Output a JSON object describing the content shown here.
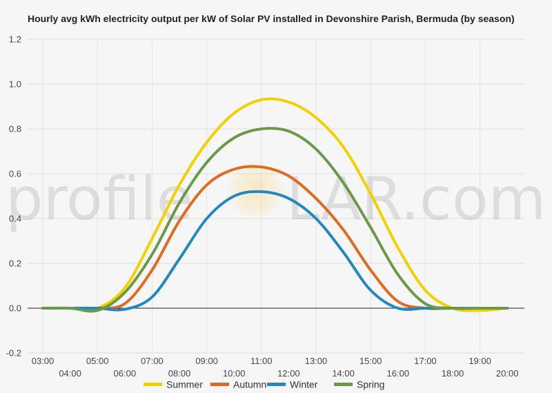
{
  "chart_data": {
    "type": "line",
    "title": "Hourly avg kWh electricity output per kW of Solar PV installed in Devonshire Parish, Bermuda (by season)",
    "xlabel": "",
    "ylabel": "",
    "ylim": [
      -0.2,
      1.2
    ],
    "yticks": [
      "-0.2",
      "0.0",
      "0.2",
      "0.4",
      "0.6",
      "0.8",
      "1.0",
      "1.2"
    ],
    "ytick_values": [
      -0.2,
      0.0,
      0.2,
      0.4,
      0.6,
      0.8,
      1.0,
      1.2
    ],
    "categories": [
      "03:00",
      "04:00",
      "05:00",
      "06:00",
      "07:00",
      "08:00",
      "09:00",
      "10:00",
      "11:00",
      "12:00",
      "13:00",
      "14:00",
      "15:00",
      "16:00",
      "17:00",
      "18:00",
      "19:00",
      "20:00"
    ],
    "grid": true,
    "legend_position": "bottom",
    "series": [
      {
        "name": "Summer",
        "color": "#f5d000",
        "values": [
          0.0,
          0.0,
          0.0,
          0.09,
          0.31,
          0.55,
          0.74,
          0.87,
          0.93,
          0.92,
          0.85,
          0.72,
          0.51,
          0.27,
          0.08,
          0.0,
          -0.01,
          0.0
        ]
      },
      {
        "name": "Autumn",
        "color": "#e06a1e",
        "values": [
          0.0,
          0.0,
          0.0,
          0.02,
          0.17,
          0.39,
          0.55,
          0.62,
          0.63,
          0.59,
          0.49,
          0.35,
          0.17,
          0.03,
          0.0,
          0.0,
          0.0,
          0.0
        ]
      },
      {
        "name": "Winter",
        "color": "#2188c0",
        "values": [
          0.0,
          0.0,
          0.0,
          -0.005,
          0.05,
          0.22,
          0.4,
          0.5,
          0.52,
          0.49,
          0.4,
          0.25,
          0.08,
          0.0,
          0.0,
          0.0,
          0.0,
          0.0
        ]
      },
      {
        "name": "Spring",
        "color": "#6b9a47",
        "values": [
          0.0,
          0.0,
          -0.01,
          0.07,
          0.24,
          0.47,
          0.65,
          0.76,
          0.8,
          0.79,
          0.71,
          0.56,
          0.36,
          0.15,
          0.02,
          0.0,
          0.0,
          0.0
        ]
      }
    ]
  },
  "watermark": {
    "prefix": "profile",
    "suffix": "LAR.com",
    "sun_color": "#f5c542"
  }
}
